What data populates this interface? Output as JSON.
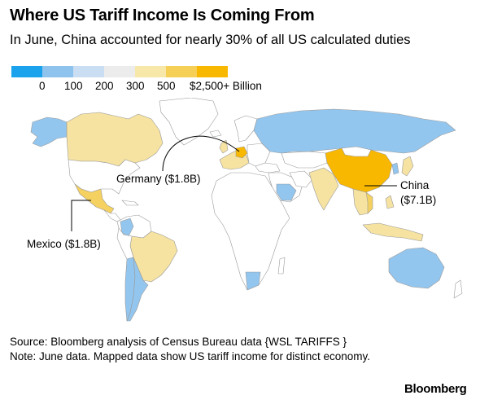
{
  "header": {
    "title": "Where US Tariff Income Is Coming From",
    "subtitle": "In June, China accounted for nearly 30% of all US calculated duties"
  },
  "legend": {
    "bins": [
      {
        "label": "0",
        "color": "#1aa3ec"
      },
      {
        "label": "100",
        "color": "#8ec3ee"
      },
      {
        "label": "200",
        "color": "#c9def3"
      },
      {
        "label": "300",
        "color": "#ececec"
      },
      {
        "label": "500",
        "color": "#f7e7a9"
      },
      {
        "label": "$2,500+ Billion",
        "color": "#f6cf57"
      },
      {
        "label": "",
        "color": "#f9b800"
      }
    ]
  },
  "map": {
    "colors": {
      "land_default": "#ffffff",
      "border": "#9a9a9a",
      "blue_light": "#93c6ef",
      "blue_mid": "#6cb4ea",
      "yellow_light": "#f6e3a1",
      "yellow_mid": "#f4d160",
      "orange": "#f9b800"
    },
    "callouts": {
      "germany": "Germany ($1.8B)",
      "mexico": "Mexico ($1.8B)",
      "china_name": "China",
      "china_value": "($7.1B)"
    }
  },
  "footer": {
    "source": "Source: Bloomberg analysis of Census Bureau data {WSL TARIFFS }",
    "note": "Note: June data. Mapped data show US tariff income for distinct economy.",
    "brand": "Bloomberg"
  }
}
